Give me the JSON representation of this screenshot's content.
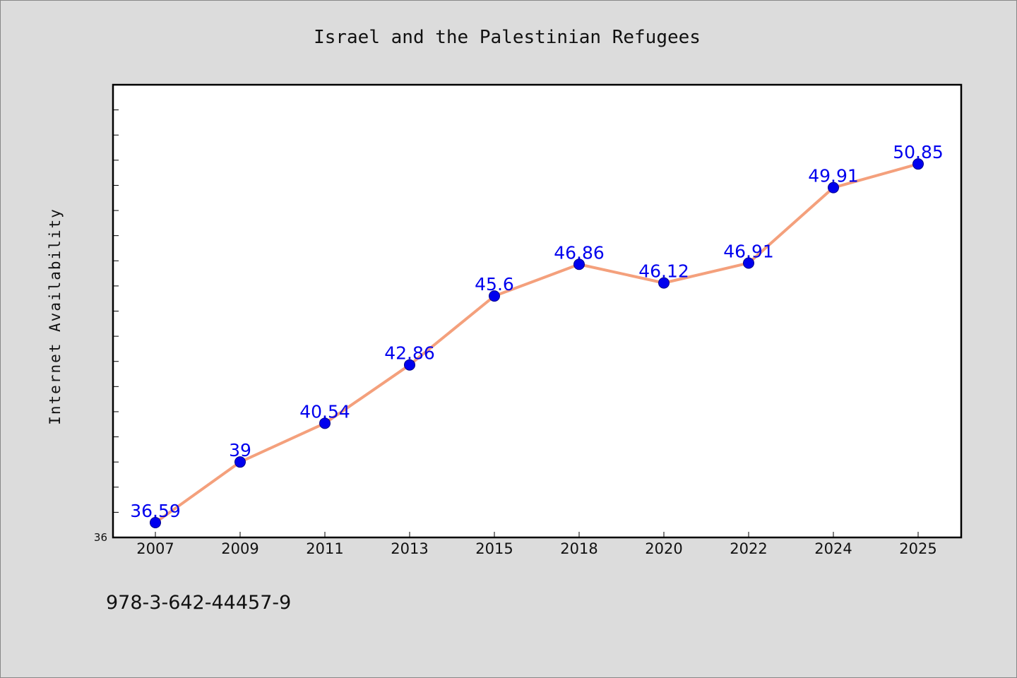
{
  "chart_data": {
    "type": "line",
    "title": "Israel and the Palestinian Refugees",
    "xlabel": "",
    "ylabel": "Internet Availability",
    "categories": [
      "2007",
      "2009",
      "2011",
      "2013",
      "2015",
      "2018",
      "2020",
      "2022",
      "2024",
      "2025"
    ],
    "series": [
      {
        "values": [
          36.59,
          39,
          40.54,
          42.86,
          45.6,
          46.86,
          46.12,
          46.91,
          49.91,
          50.85
        ]
      }
    ],
    "data_labels": [
      "36.59",
      "39",
      "40.54",
      "42.86",
      "45.6",
      "46.86",
      "46.12",
      "46.91",
      "49.91",
      "50.85"
    ],
    "ylim": [
      36,
      54
    ],
    "ytick_labels": [
      "36"
    ],
    "grid": false,
    "legend": "none",
    "colors": {
      "line": "#f4a07c",
      "marker": "#0000ee",
      "data_label": "#0000ee",
      "plot_background": "#ffffff",
      "page_background": "#dcdcdc"
    }
  },
  "footer": {
    "text": "978-3-642-44457-9"
  }
}
